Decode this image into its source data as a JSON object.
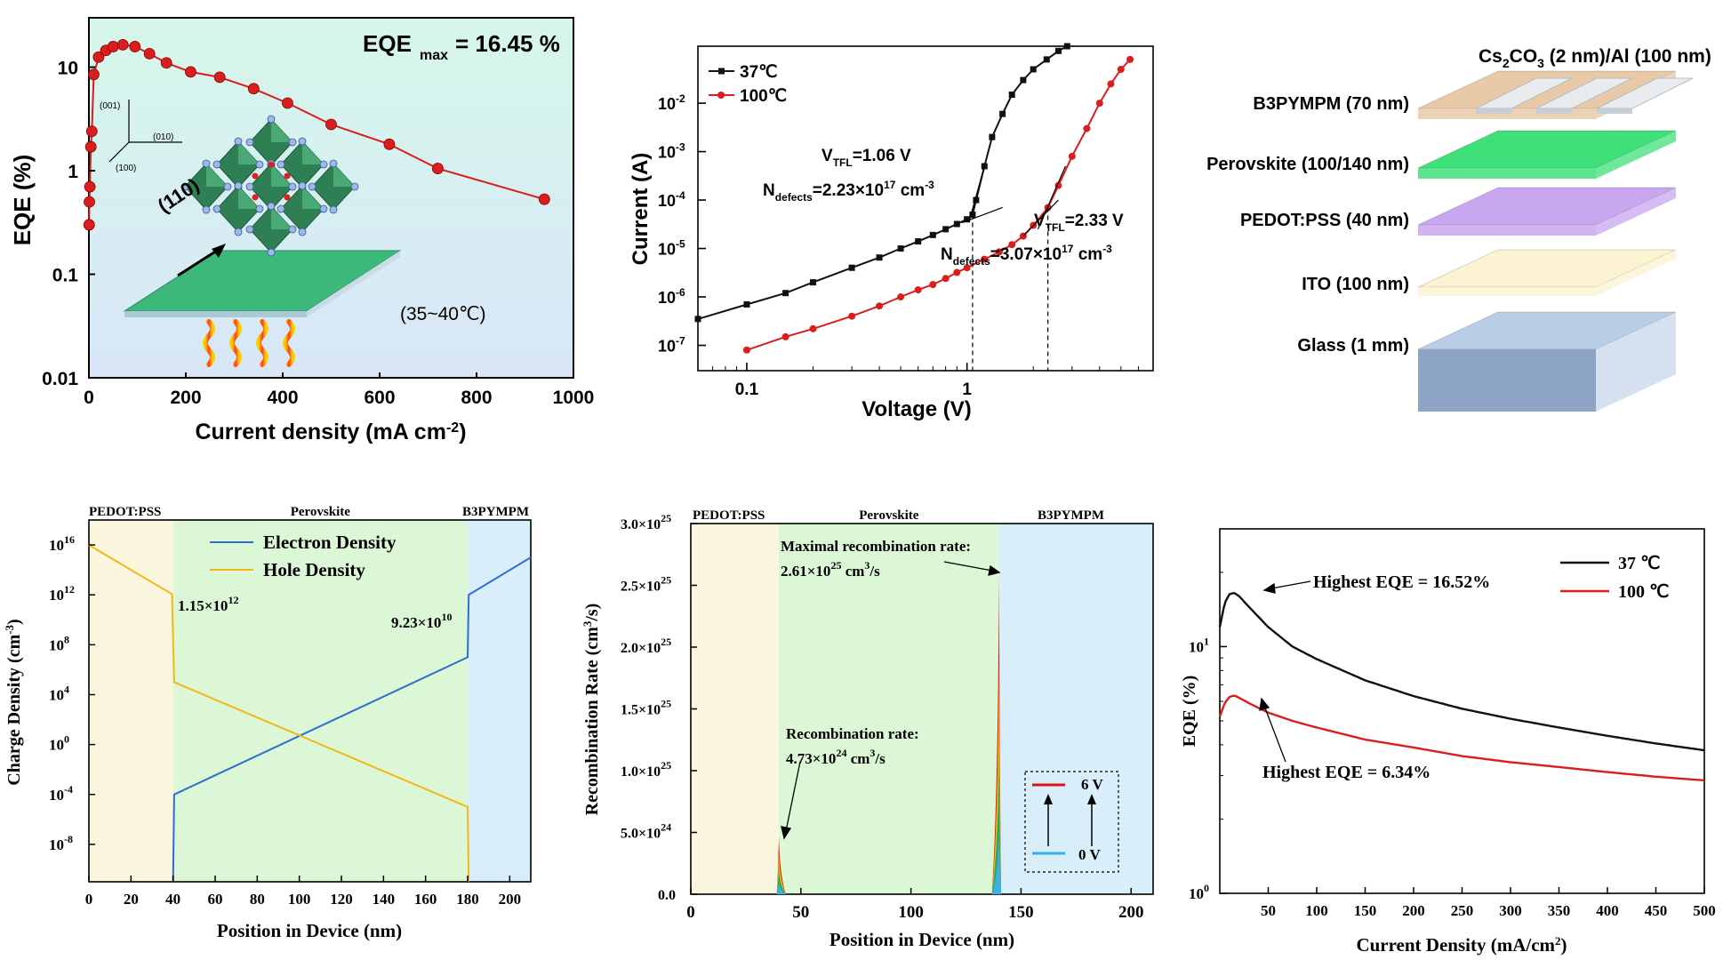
{
  "colors": {
    "panel_a_bg_top": "#d8f6ec",
    "panel_a_bg_bottom": "#d7e8f8",
    "red": "#d81e1e",
    "black": "#111111",
    "pedot_region": "#fbf6de",
    "perovskite_region": "#dcf7d6",
    "b3pympm_region": "#d8eefa",
    "electron": "#2d6fcf",
    "hole": "#f2b71a",
    "recomb_red": "#e01010",
    "recomb_blue": "#3ab0e8",
    "recomb_green": "#2aa860",
    "recomb_yellow": "#f5c400"
  },
  "layer_labels": {
    "pedot": "PEDOT:PSS",
    "perovskite": "Perovskite",
    "b3pympm": "B3PYMPM"
  },
  "panel_a": {
    "eqe_max_label": "EQE",
    "eqe_max_sub": "max",
    "eqe_max_value": "=  16.45 %",
    "temperature": "(35~40℃)",
    "plane_label": "(110)",
    "axis_001": "(001)",
    "axis_010": "(010)",
    "axis_100": "(100)"
  },
  "panel_b": {
    "vtfl_37": "V",
    "vtfl_37_sub": "TFL",
    "vtfl_37_val": "=1.06 V",
    "ndef_37": "N",
    "ndef_37_sub": "defects",
    "ndef_37_val": "=2.23×10",
    "ndef_37_exp": "17",
    "ndef_unit": " cm",
    "ndef_unit_exp": "-3",
    "vtfl_100": "V",
    "vtfl_100_sub": "TFL",
    "vtfl_100_val": "=2.33 V",
    "ndef_100": "N",
    "ndef_100_sub": "defects",
    "ndef_100_val": "=3.07×10",
    "ndef_100_exp": "17"
  },
  "device_stack": {
    "top_label": "Cs",
    "top_label_sub": "2",
    "top_label_mid": "CO",
    "top_label_sub2": "3",
    "top_label_rest": " (2 nm)/Al (100 nm)",
    "layers": [
      "B3PYMPM  (70 nm)",
      "Perovskite (100/140 nm)",
      "PEDOT:PSS  (40 nm)",
      "ITO  (100 nm)",
      "Glass (1 mm)"
    ],
    "layer_colors": [
      "#e8c9a8",
      "#3fe07a",
      "#c9a6f0",
      "#fbf3d2",
      "#b9cde6"
    ]
  },
  "panel_d": {
    "ann_hole": "1.15×10",
    "ann_hole_exp": "12",
    "ann_elec": "9.23×10",
    "ann_elec_exp": "10"
  },
  "panel_e": {
    "max_line1": "Maximal recombination rate:",
    "max_line2": "2.61×10",
    "max_exp": "25",
    "max_unit": " cm",
    "max_unit_exp": "3",
    "max_unit_tail": "/s",
    "rec_line1": "Recombination rate:",
    "rec_line2": "4.73×10",
    "rec_exp": "24",
    "legend_6v": "6 V",
    "legend_0v": "0 V"
  },
  "panel_f": {
    "ann_37": "Highest EQE = 16.52%",
    "ann_100": "Highest EQE = 6.34%"
  },
  "chart_data": [
    {
      "type": "scatter",
      "xlabel": "Current density (mA cm",
      "xlabel_exp": "-2",
      "xlabel_tail": ")",
      "ylabel": "EQE (%)",
      "xlim": [
        0,
        1000
      ],
      "ylim": [
        0.01,
        30
      ],
      "yscale": "log",
      "xticks": [
        0,
        200,
        400,
        600,
        800,
        1000
      ],
      "yticks": [
        0.01,
        0.1,
        1,
        10
      ],
      "ytick_labels": [
        "0.01",
        "0.1",
        "1",
        "10"
      ],
      "series": [
        {
          "x": [
            0.5,
            1,
            2,
            4,
            6,
            10,
            20,
            35,
            50,
            70,
            95,
            125,
            160,
            210,
            270,
            340,
            410,
            500,
            620,
            720,
            940
          ],
          "y": [
            0.3,
            0.5,
            0.7,
            1.7,
            2.4,
            8.5,
            12.5,
            14.5,
            15.8,
            16.45,
            15.8,
            13.5,
            11,
            9,
            8,
            6.2,
            4.5,
            2.8,
            1.8,
            1.05,
            0.53
          ]
        }
      ]
    },
    {
      "type": "scatter",
      "xlabel": "Voltage (V)",
      "ylabel": "Current (A)",
      "xscale": "log",
      "yscale": "log",
      "xlim": [
        0.06,
        7
      ],
      "ylim": [
        3e-08,
        0.15
      ],
      "xticks": [
        0.1,
        1
      ],
      "xtick_labels": [
        "0.1",
        "1"
      ],
      "yticks": [
        1e-07,
        1e-06,
        1e-05,
        0.0001,
        0.001,
        0.01
      ],
      "ytick_base": "10",
      "ytick_exps": [
        "-7",
        "-6",
        "-5",
        "-4",
        "-3",
        "-2"
      ],
      "series": [
        {
          "name": "37℃",
          "marker": "square",
          "x": [
            0.06,
            0.1,
            0.15,
            0.2,
            0.3,
            0.4,
            0.5,
            0.6,
            0.7,
            0.8,
            0.9,
            1.0,
            1.06,
            1.1,
            1.2,
            1.3,
            1.45,
            1.6,
            1.8,
            2.0,
            2.3,
            2.6,
            2.85
          ],
          "y": [
            3.5e-07,
            7e-07,
            1.2e-06,
            2e-06,
            4e-06,
            6.5e-06,
            1e-05,
            1.4e-05,
            1.9e-05,
            2.5e-05,
            3.2e-05,
            4e-05,
            5e-05,
            0.0001,
            0.0005,
            0.002,
            0.006,
            0.015,
            0.03,
            0.05,
            0.08,
            0.12,
            0.15
          ]
        },
        {
          "name": "100℃",
          "marker": "circle",
          "x": [
            0.1,
            0.15,
            0.2,
            0.3,
            0.4,
            0.5,
            0.6,
            0.7,
            0.8,
            0.9,
            1.0,
            1.2,
            1.4,
            1.6,
            1.8,
            2.0,
            2.33,
            2.6,
            3.0,
            3.5,
            4.0,
            4.5,
            5.0,
            5.5
          ],
          "y": [
            8e-08,
            1.5e-07,
            2.2e-07,
            4e-07,
            6.5e-07,
            1e-06,
            1.4e-06,
            1.8e-06,
            2.4e-06,
            3.2e-06,
            4e-06,
            6e-06,
            8.5e-06,
            1.2e-05,
            1.8e-05,
            3e-05,
            7e-05,
            0.0002,
            0.0008,
            0.003,
            0.01,
            0.025,
            0.05,
            0.08
          ]
        }
      ]
    },
    {
      "type": "line",
      "xlabel": "Position in Device (nm)",
      "ylabel": "Charge Density (cm",
      "ylabel_exp": "-3",
      "ylabel_tail": ")",
      "xlim": [
        0,
        210
      ],
      "ylim": [
        1e-11,
        1e+18
      ],
      "yscale": "log",
      "xticks": [
        0,
        20,
        40,
        60,
        80,
        100,
        120,
        140,
        160,
        180,
        200
      ],
      "yticks": [
        1e-08,
        0.0001,
        1,
        10000.0,
        100000000.0,
        1000000000000.0,
        1e+16
      ],
      "ytick_base": "10",
      "ytick_exps": [
        "-8",
        "-4",
        "0",
        "4",
        "8",
        "12",
        "16"
      ],
      "regions": [
        [
          0,
          40
        ],
        [
          40,
          180
        ],
        [
          180,
          210
        ]
      ],
      "series": [
        {
          "name": "Electron Density",
          "x": [
            40,
            40.5,
            180,
            180.5,
            210
          ],
          "y": [
            1e-11,
            0.0001,
            10000000.0,
            1000000000000.0,
            1000000000000000.0
          ]
        },
        {
          "name": "Hole Density",
          "x": [
            0,
            39.5,
            40.5,
            180,
            180.5
          ],
          "y": [
            1e+16,
            1150000000000.0,
            100000.0,
            1e-05,
            1e-11
          ]
        }
      ]
    },
    {
      "type": "area",
      "xlabel": "Position in Device (nm)",
      "ylabel": "Recombination Rate (cm",
      "ylabel_exp": "3",
      "ylabel_tail": "/s)",
      "xlim": [
        0,
        210
      ],
      "ylim": [
        0,
        3e+25
      ],
      "xticks": [
        0,
        50,
        100,
        150,
        200
      ],
      "yticks": [
        0,
        5e+24,
        1e+25,
        1.5e+25,
        2e+25,
        2.5e+25,
        3e+25
      ],
      "ytick_labels": [
        "0.0",
        "5.0×10",
        "1.0×10",
        "1.5×10",
        "2.0×10",
        "2.5×10",
        "3.0×10"
      ],
      "ytick_exps": [
        "",
        "24",
        "25",
        "25",
        "25",
        "25",
        "25"
      ],
      "regions": [
        [
          0,
          40
        ],
        [
          40,
          140
        ],
        [
          140,
          210
        ]
      ],
      "peaks": [
        {
          "x": 40,
          "y": 4.73e+24
        },
        {
          "x": 140,
          "y": 2.61e+25
        }
      ]
    },
    {
      "type": "line",
      "xlabel": "Current Density (mA/cm",
      "xlabel_exp": "2",
      "xlabel_tail": ")",
      "ylabel": "EQE (%)",
      "xlim": [
        0,
        500
      ],
      "ylim": [
        1,
        30
      ],
      "yscale": "log",
      "xticks": [
        50,
        100,
        150,
        200,
        250,
        300,
        350,
        400,
        450,
        500
      ],
      "yticks": [
        1,
        10
      ],
      "ytick_base": "10",
      "ytick_exps": [
        "0",
        "1"
      ],
      "series": [
        {
          "name": "37 ℃",
          "x": [
            0,
            5,
            10,
            15,
            20,
            30,
            50,
            75,
            100,
            150,
            200,
            250,
            300,
            350,
            400,
            450,
            500
          ],
          "y": [
            12,
            15,
            16.3,
            16.52,
            16,
            14.5,
            12,
            10,
            8.9,
            7.3,
            6.3,
            5.6,
            5.1,
            4.7,
            4.35,
            4.05,
            3.8
          ]
        },
        {
          "name": "100 ℃",
          "x": [
            0,
            5,
            10,
            15,
            20,
            30,
            50,
            75,
            100,
            150,
            200,
            250,
            300,
            350,
            400,
            450,
            500
          ],
          "y": [
            5.2,
            5.9,
            6.25,
            6.34,
            6.2,
            5.9,
            5.4,
            5.0,
            4.7,
            4.2,
            3.9,
            3.6,
            3.4,
            3.25,
            3.1,
            2.97,
            2.87
          ]
        }
      ]
    }
  ]
}
